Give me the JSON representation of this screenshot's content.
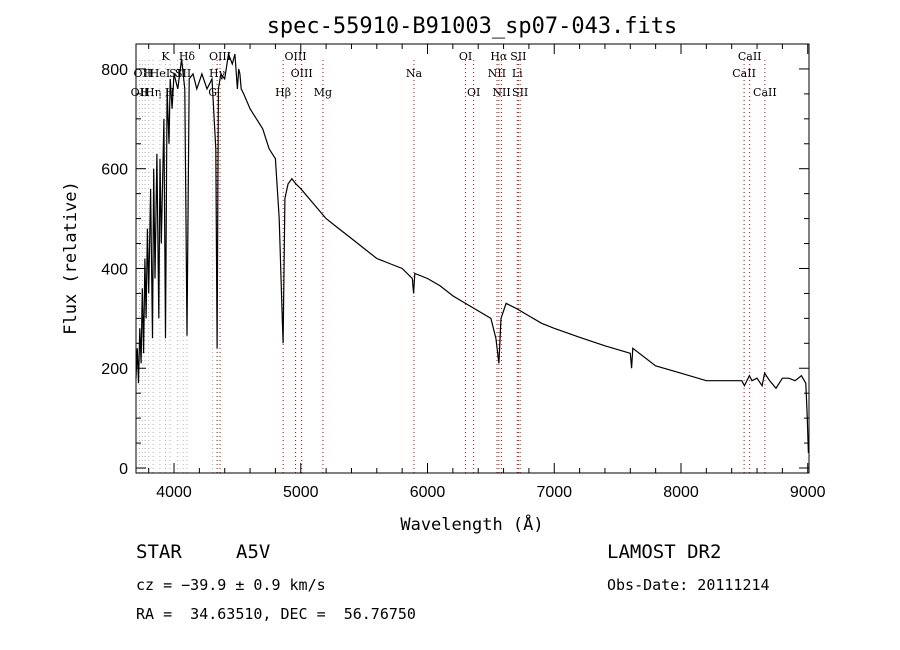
{
  "chart_data": {
    "type": "line",
    "title": "spec-55910-B91003_sp07-043.fits",
    "xlabel": "Wavelength (Å)",
    "ylabel": "Flux (relative)",
    "xlim": [
      3700,
      9010
    ],
    "ylim": [
      -10,
      850
    ],
    "xticks": [
      4000,
      5000,
      6000,
      7000,
      8000,
      9000
    ],
    "yticks": [
      0,
      200,
      400,
      600,
      800
    ],
    "grid": false,
    "series": [
      {
        "x": [
          3700,
          3710,
          3720,
          3730,
          3740,
          3750,
          3760,
          3770,
          3780,
          3790,
          3800,
          3815,
          3830,
          3840,
          3850,
          3865,
          3880,
          3889,
          3900,
          3920,
          3933,
          3945,
          3960,
          3970,
          3985,
          4000,
          4030,
          4060,
          4085,
          4102,
          4120,
          4150,
          4180,
          4220,
          4260,
          4300,
          4330,
          4340,
          4350,
          4370,
          4400,
          4430,
          4460,
          4480,
          4500,
          4510,
          4520,
          4530,
          4550,
          4600,
          4650,
          4700,
          4750,
          4800,
          4830,
          4850,
          4861,
          4875,
          4900,
          4930,
          4960,
          5000,
          5100,
          5200,
          5300,
          5400,
          5500,
          5600,
          5700,
          5800,
          5880,
          5890,
          5900,
          6000,
          6100,
          6200,
          6300,
          6400,
          6500,
          6540,
          6563,
          6580,
          6620,
          6700,
          6800,
          6900,
          7000,
          7200,
          7400,
          7600,
          7610,
          7620,
          7800,
          8000,
          8200,
          8400,
          8480,
          8500,
          8540,
          8560,
          8600,
          8640,
          8660,
          8700,
          8750,
          8800,
          8850,
          8900,
          8950,
          8985,
          8995,
          9005
        ],
        "y": [
          180,
          240,
          170,
          280,
          210,
          360,
          230,
          420,
          300,
          480,
          350,
          560,
          260,
          600,
          380,
          630,
          300,
          620,
          450,
          700,
          260,
          760,
          650,
          780,
          720,
          790,
          760,
          820,
          760,
          265,
          780,
          790,
          760,
          790,
          760,
          780,
          640,
          240,
          760,
          790,
          780,
          830,
          810,
          830,
          760,
          800,
          790,
          760,
          750,
          720,
          700,
          680,
          640,
          620,
          500,
          330,
          250,
          540,
          570,
          580,
          570,
          560,
          530,
          500,
          480,
          460,
          440,
          420,
          410,
          400,
          380,
          350,
          390,
          380,
          365,
          345,
          330,
          315,
          300,
          260,
          210,
          300,
          330,
          320,
          305,
          290,
          280,
          262,
          245,
          230,
          200,
          240,
          205,
          190,
          175,
          175,
          175,
          165,
          185,
          175,
          180,
          165,
          190,
          175,
          160,
          180,
          180,
          175,
          185,
          170,
          110,
          30
        ]
      }
    ],
    "line_markers": [
      {
        "wl": 3727,
        "label": "OII",
        "row": 3,
        "color": "#b3b3b3"
      },
      {
        "wl": 3750,
        "label": "OII",
        "row": 2,
        "color": "#b3b3b3"
      },
      {
        "wl": 3771,
        "label": "H",
        "row": 3,
        "color": "#b3b3b3"
      },
      {
        "wl": 3798,
        "label": "H",
        "row": 2,
        "color": "#b3b3b3"
      },
      {
        "wl": 3835,
        "label": "Hη",
        "row": 3,
        "color": "#b3b3b3"
      },
      {
        "wl": 3889,
        "label": "HeI",
        "row": 2,
        "color": "#b3b3b3"
      },
      {
        "wl": 3933,
        "label": "K",
        "row": 1,
        "color": "#b3b3b3"
      },
      {
        "wl": 3968,
        "label": "H",
        "row": 3,
        "color": "#b3b3b3"
      },
      {
        "wl": 4026,
        "label": "SII",
        "row": 2,
        "color": "#b3b3b3"
      },
      {
        "wl": 4072,
        "label": "SII",
        "row": 2,
        "color": "#b3b3b3"
      },
      {
        "wl": 4102,
        "label": "Hδ",
        "row": 1,
        "color": "#b3b3b3"
      },
      {
        "wl": 4305,
        "label": "G",
        "row": 3,
        "color": "#b3b3b3"
      },
      {
        "wl": 4340,
        "label": "Hγ",
        "row": 2,
        "color": "#cc0000"
      },
      {
        "wl": 4363,
        "label": "OIII",
        "row": 1,
        "color": "#cc0000"
      },
      {
        "wl": 4861,
        "label": "Hβ",
        "row": 3,
        "color": "#cc0000"
      },
      {
        "wl": 4959,
        "label": "OIII",
        "row": 1,
        "color": "#cc0000"
      },
      {
        "wl": 5007,
        "label": "OIII",
        "row": 2,
        "color": "#cc0000"
      },
      {
        "wl": 5175,
        "label": "Mg",
        "row": 3,
        "color": "#cc0000"
      },
      {
        "wl": 5893,
        "label": "Na",
        "row": 2,
        "color": "#cc0000"
      },
      {
        "wl": 6300,
        "label": "OI",
        "row": 1,
        "color": "#cc0000"
      },
      {
        "wl": 6364,
        "label": "OI",
        "row": 3,
        "color": "#cc0000"
      },
      {
        "wl": 6548,
        "label": "NII",
        "row": 2,
        "color": "#cc0000"
      },
      {
        "wl": 6563,
        "label": "Hα",
        "row": 1,
        "color": "#cc0000"
      },
      {
        "wl": 6584,
        "label": "NII",
        "row": 3,
        "color": "#cc0000"
      },
      {
        "wl": 6708,
        "label": "Li",
        "row": 2,
        "color": "#cc0000"
      },
      {
        "wl": 6717,
        "label": "SII",
        "row": 1,
        "color": "#cc0000"
      },
      {
        "wl": 6731,
        "label": "SII",
        "row": 3,
        "color": "#cc0000"
      },
      {
        "wl": 8498,
        "label": "CaII",
        "row": 2,
        "color": "#cc0000"
      },
      {
        "wl": 8542,
        "label": "CaII",
        "row": 1,
        "color": "#cc0000"
      },
      {
        "wl": 8662,
        "label": "CaII",
        "row": 3,
        "color": "#cc0000"
      }
    ]
  },
  "footer": {
    "object_type": "STAR",
    "subclass": "A5V",
    "survey": "LAMOST DR2",
    "redshift": "cz = −39.9 ± 0.9 km/s",
    "obs_date": "Obs-Date: 20111214",
    "coords": "RA =  34.63510, DEC =  56.76750"
  }
}
